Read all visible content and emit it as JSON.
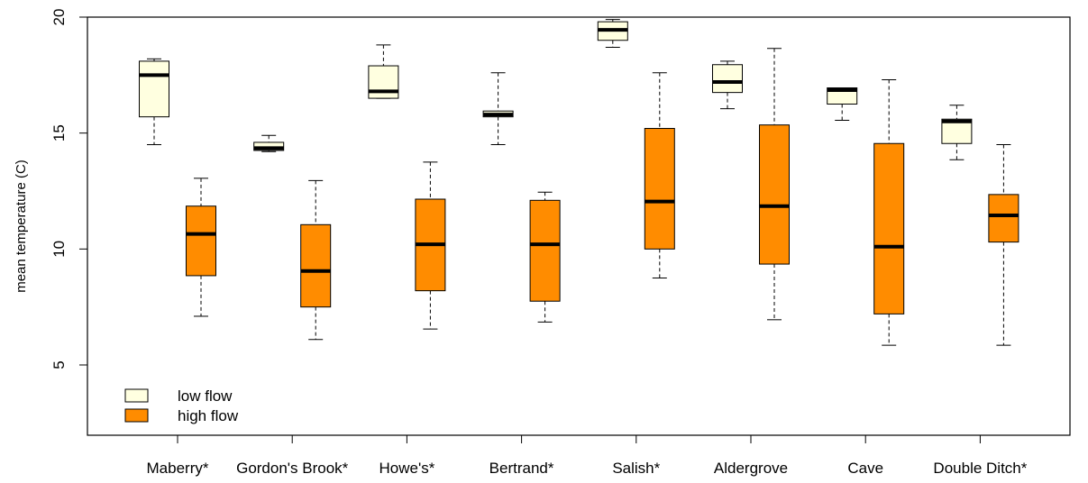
{
  "chart_data": {
    "type": "boxplot",
    "title": "",
    "xlabel": "",
    "ylabel": "mean temperature (C)",
    "ylim": [
      2,
      20
    ],
    "yticks": [
      5,
      10,
      15,
      20
    ],
    "categories": [
      "Maberry*",
      "Gordon's Brook*",
      "Howe's*",
      "Bertrand*",
      "Salish*",
      "Aldergrove",
      "Cave",
      "Double Ditch*"
    ],
    "series": [
      {
        "name": "low flow",
        "color": "#FFFFE0",
        "boxes": [
          {
            "min": 14.5,
            "q1": 15.7,
            "median": 17.5,
            "q3": 18.1,
            "max": 18.2
          },
          {
            "min": 14.2,
            "q1": 14.25,
            "median": 14.35,
            "q3": 14.6,
            "max": 14.9
          },
          {
            "min": 16.5,
            "q1": 16.5,
            "median": 16.8,
            "q3": 17.9,
            "max": 18.8
          },
          {
            "min": 14.5,
            "q1": 15.7,
            "median": 15.8,
            "q3": 15.95,
            "max": 17.6
          },
          {
            "min": 18.7,
            "q1": 19.0,
            "median": 19.45,
            "q3": 19.8,
            "max": 19.9
          },
          {
            "min": 16.05,
            "q1": 16.75,
            "median": 17.2,
            "q3": 17.95,
            "max": 18.1
          },
          {
            "min": 15.55,
            "q1": 16.25,
            "median": 16.85,
            "q3": 16.95,
            "max": 16.95
          },
          {
            "min": 13.85,
            "q1": 14.55,
            "median": 15.5,
            "q3": 15.6,
            "max": 16.2
          }
        ]
      },
      {
        "name": "high flow",
        "color": "#FF8C00",
        "boxes": [
          {
            "min": 7.1,
            "q1": 8.85,
            "median": 10.65,
            "q3": 11.85,
            "max": 13.05
          },
          {
            "min": 6.1,
            "q1": 7.5,
            "median": 9.05,
            "q3": 11.05,
            "max": 12.95
          },
          {
            "min": 6.55,
            "q1": 8.2,
            "median": 10.2,
            "q3": 12.15,
            "max": 13.75
          },
          {
            "min": 6.85,
            "q1": 7.75,
            "median": 10.2,
            "q3": 12.1,
            "max": 12.45
          },
          {
            "min": 8.75,
            "q1": 10.0,
            "median": 12.05,
            "q3": 15.2,
            "max": 17.6
          },
          {
            "min": 6.95,
            "q1": 9.35,
            "median": 11.85,
            "q3": 15.35,
            "max": 18.65
          },
          {
            "min": 5.85,
            "q1": 7.2,
            "median": 10.1,
            "q3": 14.55,
            "max": 17.3
          },
          {
            "min": 5.85,
            "q1": 10.3,
            "median": 11.45,
            "q3": 12.35,
            "max": 14.5
          }
        ]
      }
    ],
    "legend": {
      "position": "bottom-left"
    },
    "grid": false
  }
}
